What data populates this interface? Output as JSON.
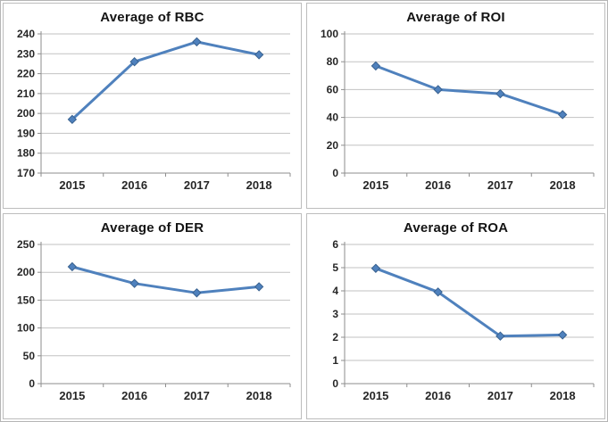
{
  "style": {
    "line_color": "#4f81bd",
    "marker_edge": "#38618f",
    "marker": "diamond",
    "gridline_color": "#c2c2c2",
    "axis_color": "#8e8e8e",
    "label_color": "#262626",
    "panel_border_color": "#bdbdbd"
  },
  "chart_data": [
    {
      "type": "line",
      "title": "Average of RBC",
      "categories": [
        "2015",
        "2016",
        "2017",
        "2018"
      ],
      "values": [
        197,
        226,
        236,
        229.5
      ],
      "xlabel": "",
      "ylabel": "",
      "ylim": [
        170,
        240
      ],
      "ytick_step": 10,
      "grid": true,
      "legend": "none"
    },
    {
      "type": "line",
      "title": "Average of ROI",
      "categories": [
        "2015",
        "2016",
        "2017",
        "2018"
      ],
      "values": [
        77,
        60,
        57,
        42
      ],
      "xlabel": "",
      "ylabel": "",
      "ylim": [
        0,
        100
      ],
      "ytick_step": 20,
      "grid": true,
      "legend": "none"
    },
    {
      "type": "line",
      "title": "Average of DER",
      "categories": [
        "2015",
        "2016",
        "2017",
        "2018"
      ],
      "values": [
        210,
        180,
        163,
        174
      ],
      "xlabel": "",
      "ylabel": "",
      "ylim": [
        0,
        250
      ],
      "ytick_step": 50,
      "grid": true,
      "legend": "none"
    },
    {
      "type": "line",
      "title": "Average of ROA",
      "categories": [
        "2015",
        "2016",
        "2017",
        "2018"
      ],
      "values": [
        4.97,
        3.95,
        2.05,
        2.1
      ],
      "xlabel": "",
      "ylabel": "",
      "ylim": [
        0,
        6
      ],
      "ytick_step": 1,
      "grid": true,
      "legend": "none"
    }
  ]
}
